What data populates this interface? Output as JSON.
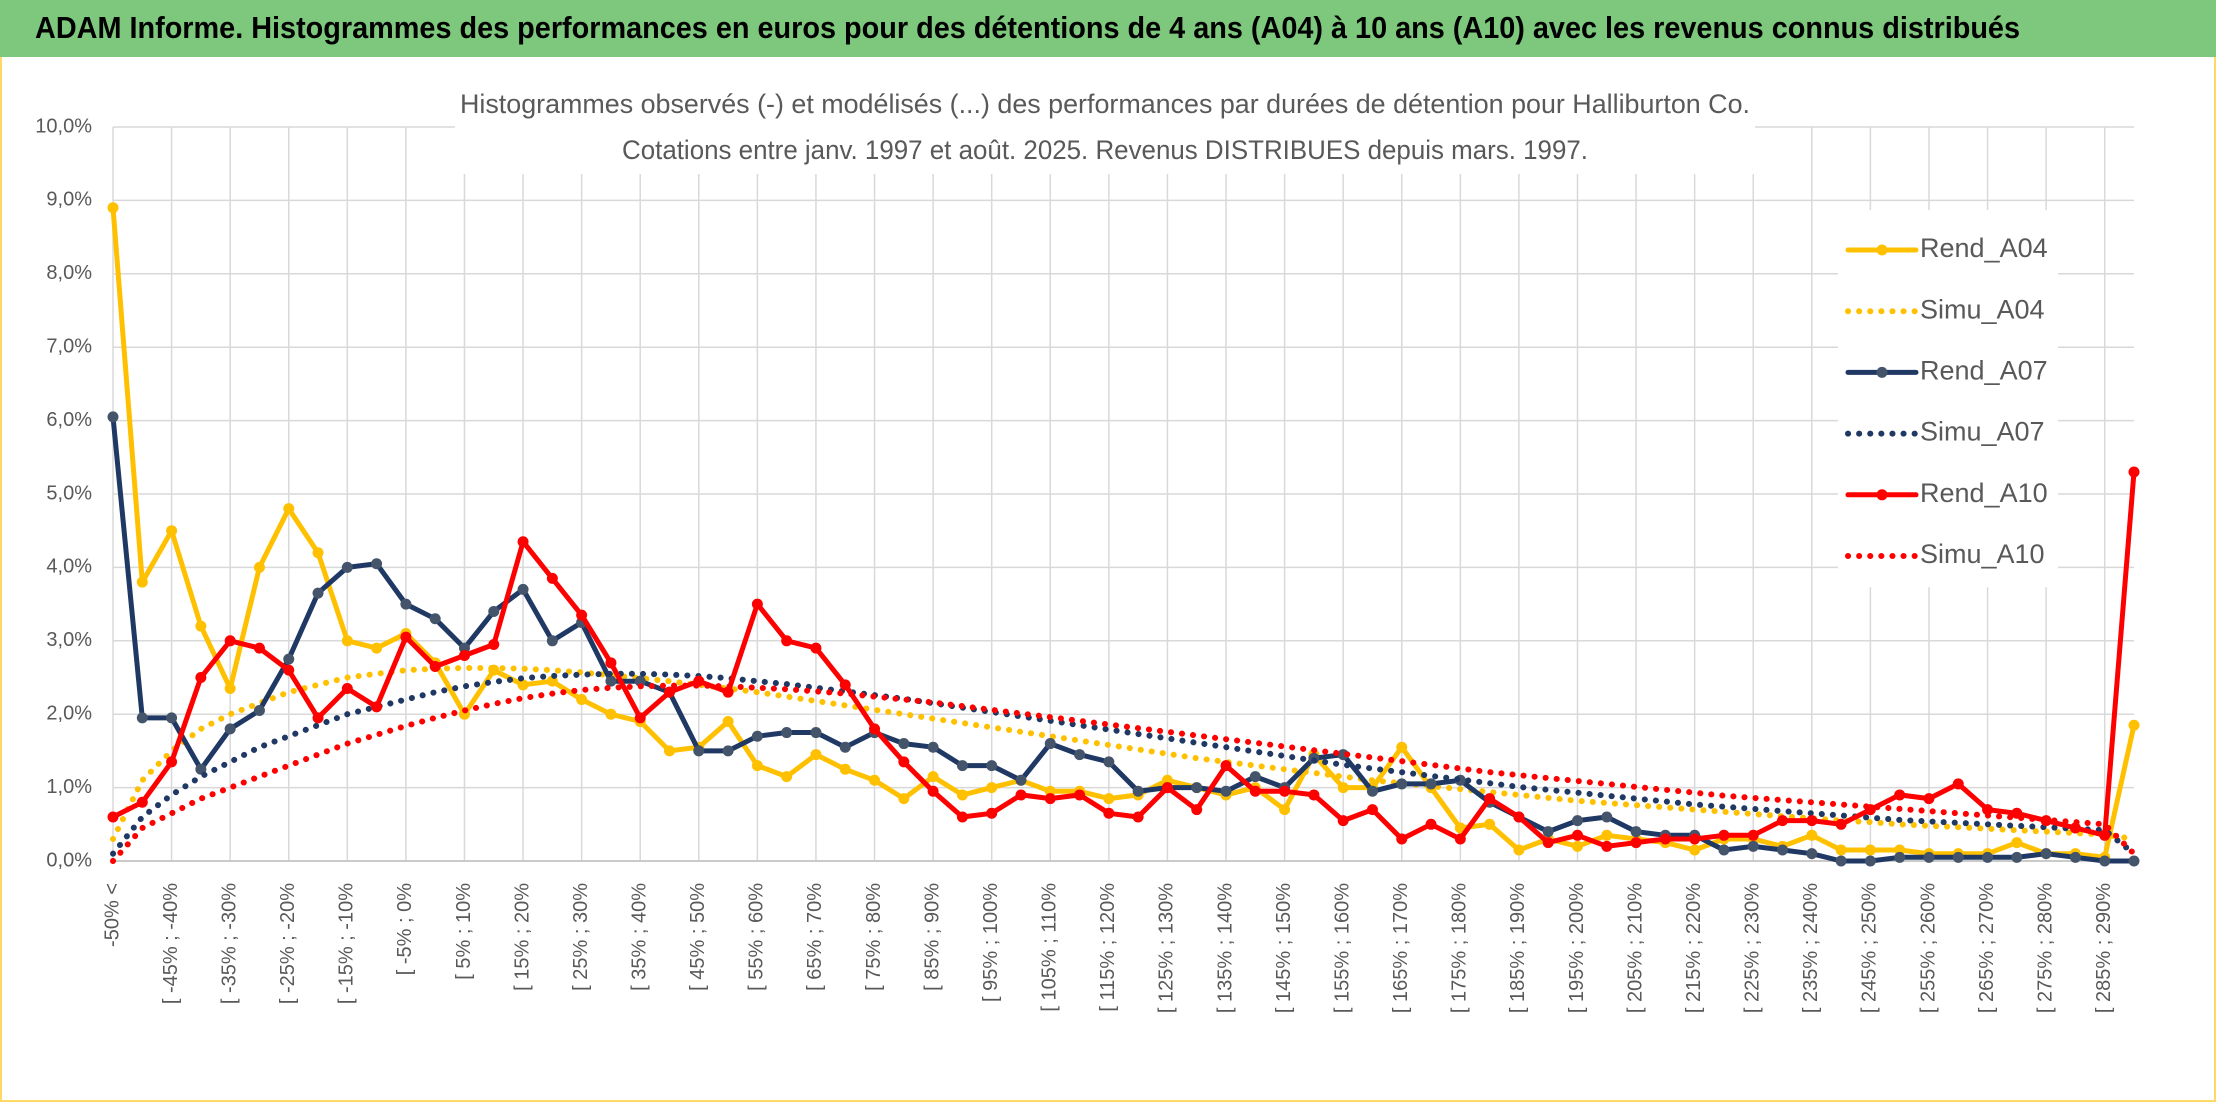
{
  "chart_data": {
    "type": "line",
    "header": "ADAM Informe. Histogrammes des performances en euros pour des détentions de 4 ans (A04) à 10 ans (A10) avec les revenus connus distribués",
    "title": "Histogrammes observés (-) et modélisés (...) des performances par durées de détention pour Halliburton Co.",
    "subtitle": "Cotations entre janv. 1997 et août. 2025. Revenus DISTRIBUES depuis mars. 1997.",
    "categories": [
      "-50% <",
      null,
      "[ -45% ; -40%",
      null,
      "[ -35% ; -30%",
      null,
      "[ -25% ; -20%",
      null,
      "[ -15% ; -10%",
      null,
      "[ -5% ; 0%",
      null,
      "[ 5% ; 10%",
      null,
      "[ 15% ; 20%",
      null,
      "[ 25% ; 30%",
      null,
      "[ 35% ; 40%",
      null,
      "[ 45% ; 50%",
      null,
      "[ 55% ; 60%",
      null,
      "[ 65% ; 70%",
      null,
      "[ 75% ; 80%",
      null,
      "[ 85% ; 90%",
      null,
      "[ 95% ; 100%",
      null,
      "[ 105% ; 110%",
      null,
      "[ 115% ; 120%",
      null,
      "[ 125% ; 130%",
      null,
      "[ 135% ; 140%",
      null,
      "[ 145% ; 150%",
      null,
      "[ 155% ; 160%",
      null,
      "[ 165% ; 170%",
      null,
      "[ 175% ; 180%",
      null,
      "[ 185% ; 190%",
      null,
      "[ 195% ; 200%",
      null,
      "[ 205% ; 210%",
      null,
      "[ 215% ; 220%",
      null,
      "[ 225% ; 230%",
      null,
      "[ 235% ; 240%",
      null,
      "[ 245% ; 250%",
      null,
      "[ 255% ; 260%",
      null,
      "[ 265% ; 270%",
      null,
      "[ 275% ; 280%",
      null,
      "[ 285% ; 290%",
      null
    ],
    "ylim": [
      0,
      10
    ],
    "yticks": [
      {
        "value": 0,
        "label": "0,0%"
      },
      {
        "value": 1,
        "label": "1,0%"
      },
      {
        "value": 2,
        "label": "2,0%"
      },
      {
        "value": 3,
        "label": "3,0%"
      },
      {
        "value": 4,
        "label": "4,0%"
      },
      {
        "value": 5,
        "label": "5,0%"
      },
      {
        "value": 6,
        "label": "6,0%"
      },
      {
        "value": 7,
        "label": "7,0%"
      },
      {
        "value": 8,
        "label": "8,0%"
      },
      {
        "value": 9,
        "label": "9,0%"
      },
      {
        "value": 10,
        "label": "10,0%"
      }
    ],
    "grid": true,
    "legend": "right",
    "series": [
      {
        "name": "Rend_A04",
        "color": "#FFC000",
        "style": "solid",
        "values": [
          8.9,
          3.8,
          4.5,
          3.2,
          2.35,
          4.0,
          4.8,
          4.2,
          3.0,
          2.9,
          3.1,
          2.7,
          2.0,
          2.6,
          2.4,
          2.45,
          2.2,
          2.0,
          1.9,
          1.5,
          1.55,
          1.9,
          1.3,
          1.15,
          1.45,
          1.25,
          1.1,
          0.85,
          1.15,
          0.9,
          1.0,
          1.1,
          0.95,
          0.95,
          0.85,
          0.9,
          1.1,
          1.0,
          0.9,
          1.0,
          0.7,
          1.45,
          1.0,
          1.0,
          1.55,
          1.0,
          0.45,
          0.5,
          0.15,
          0.3,
          0.2,
          0.35,
          0.3,
          0.25,
          0.15,
          0.3,
          0.3,
          0.2,
          0.35,
          0.15,
          0.15,
          0.15,
          0.1,
          0.1,
          0.1,
          0.25,
          0.1,
          0.1,
          0.05,
          1.85
        ]
      },
      {
        "name": "Simu_A04",
        "color": "#FFC000",
        "style": "dotted",
        "values": [
          0.3,
          1.1,
          1.5,
          1.8,
          2.0,
          2.15,
          2.3,
          2.4,
          2.5,
          2.55,
          2.6,
          2.62,
          2.63,
          2.63,
          2.62,
          2.6,
          2.57,
          2.53,
          2.49,
          2.45,
          2.4,
          2.35,
          2.3,
          2.24,
          2.18,
          2.12,
          2.06,
          2.0,
          1.94,
          1.88,
          1.82,
          1.76,
          1.7,
          1.64,
          1.58,
          1.52,
          1.46,
          1.4,
          1.35,
          1.3,
          1.25,
          1.2,
          1.15,
          1.1,
          1.06,
          1.02,
          0.98,
          0.94,
          0.9,
          0.86,
          0.82,
          0.79,
          0.76,
          0.73,
          0.7,
          0.67,
          0.64,
          0.61,
          0.58,
          0.55,
          0.53,
          0.5,
          0.48,
          0.46,
          0.44,
          0.42,
          0.4,
          0.38,
          0.36,
          0.3
        ]
      },
      {
        "name": "Rend_A07",
        "color": "#1F3864",
        "style": "solid",
        "values": [
          6.05,
          1.95,
          1.95,
          1.25,
          1.8,
          2.05,
          2.75,
          3.65,
          4.0,
          4.05,
          3.5,
          3.3,
          2.9,
          3.4,
          3.7,
          3.0,
          3.25,
          2.45,
          2.45,
          2.3,
          1.5,
          1.5,
          1.7,
          1.75,
          1.75,
          1.55,
          1.75,
          1.6,
          1.55,
          1.3,
          1.3,
          1.1,
          1.6,
          1.45,
          1.35,
          0.95,
          1.0,
          1.0,
          0.95,
          1.15,
          1.0,
          1.4,
          1.45,
          0.95,
          1.05,
          1.05,
          1.1,
          0.8,
          0.6,
          0.4,
          0.55,
          0.6,
          0.4,
          0.35,
          0.35,
          0.15,
          0.2,
          0.15,
          0.1,
          0.0,
          0.0,
          0.05,
          0.05,
          0.05,
          0.05,
          0.05,
          0.1,
          0.05,
          0.0,
          0.0
        ]
      },
      {
        "name": "Simu_A07",
        "color": "#1F3864",
        "style": "dotted",
        "values": [
          0.1,
          0.6,
          0.9,
          1.15,
          1.35,
          1.55,
          1.7,
          1.85,
          2.0,
          2.1,
          2.2,
          2.3,
          2.38,
          2.44,
          2.49,
          2.52,
          2.54,
          2.55,
          2.55,
          2.54,
          2.52,
          2.49,
          2.45,
          2.41,
          2.36,
          2.31,
          2.26,
          2.21,
          2.15,
          2.09,
          2.03,
          1.97,
          1.91,
          1.85,
          1.79,
          1.73,
          1.67,
          1.61,
          1.55,
          1.49,
          1.43,
          1.37,
          1.31,
          1.26,
          1.21,
          1.16,
          1.11,
          1.06,
          1.01,
          0.97,
          0.93,
          0.89,
          0.85,
          0.81,
          0.77,
          0.74,
          0.71,
          0.68,
          0.65,
          0.62,
          0.59,
          0.56,
          0.54,
          0.52,
          0.5,
          0.48,
          0.46,
          0.44,
          0.42,
          0.1
        ]
      },
      {
        "name": "Rend_A10",
        "color": "#FF0000",
        "style": "solid",
        "values": [
          0.6,
          0.8,
          1.35,
          2.5,
          3.0,
          2.9,
          2.6,
          1.95,
          2.35,
          2.1,
          3.05,
          2.65,
          2.8,
          2.95,
          4.35,
          3.85,
          3.35,
          2.7,
          1.95,
          2.3,
          2.45,
          2.3,
          3.5,
          3.0,
          2.9,
          2.4,
          1.8,
          1.35,
          0.95,
          0.6,
          0.65,
          0.9,
          0.85,
          0.9,
          0.65,
          0.6,
          1.0,
          0.7,
          1.3,
          0.95,
          0.95,
          0.9,
          0.55,
          0.7,
          0.3,
          0.5,
          0.3,
          0.85,
          0.6,
          0.25,
          0.35,
          0.2,
          0.25,
          0.3,
          0.3,
          0.35,
          0.35,
          0.55,
          0.55,
          0.5,
          0.7,
          0.9,
          0.85,
          1.05,
          0.7,
          0.65,
          0.55,
          0.45,
          0.35,
          5.3
        ]
      },
      {
        "name": "Simu_A10",
        "color": "#FF0000",
        "style": "dotted",
        "values": [
          0.0,
          0.45,
          0.65,
          0.85,
          1.0,
          1.15,
          1.3,
          1.45,
          1.6,
          1.72,
          1.84,
          1.95,
          2.05,
          2.14,
          2.22,
          2.28,
          2.33,
          2.36,
          2.38,
          2.39,
          2.39,
          2.38,
          2.36,
          2.34,
          2.31,
          2.28,
          2.24,
          2.2,
          2.16,
          2.11,
          2.06,
          2.01,
          1.96,
          1.91,
          1.86,
          1.81,
          1.76,
          1.71,
          1.66,
          1.61,
          1.56,
          1.51,
          1.46,
          1.41,
          1.36,
          1.31,
          1.26,
          1.21,
          1.17,
          1.13,
          1.09,
          1.05,
          1.01,
          0.97,
          0.93,
          0.89,
          0.86,
          0.83,
          0.8,
          0.77,
          0.74,
          0.71,
          0.68,
          0.65,
          0.62,
          0.59,
          0.56,
          0.53,
          0.5,
          0.1
        ]
      }
    ]
  }
}
